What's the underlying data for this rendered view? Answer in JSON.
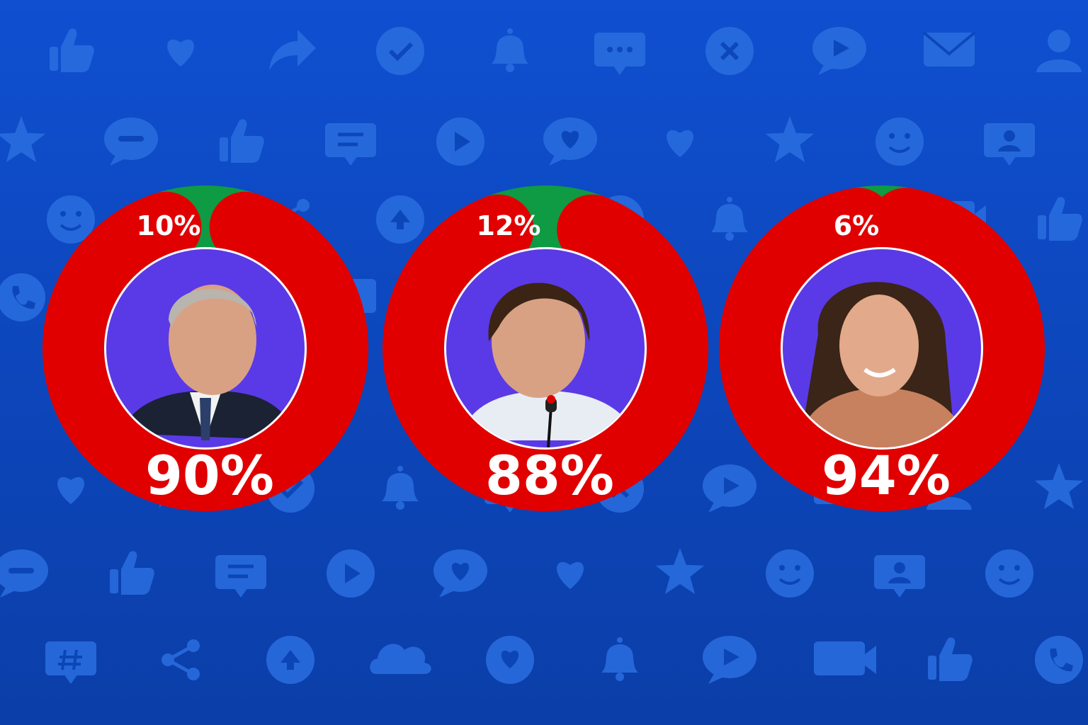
{
  "colors": {
    "background_top": "#0f4fd0",
    "background_bottom": "#0b3ea8",
    "pattern_icon": "#2a6ee0",
    "negative_red": "#e00000",
    "positive_green": "#0f9a44",
    "portrait_bg": "#5a3ae6",
    "label_text": "#ffffff"
  },
  "background_icons": [
    "thumbs-up-icon",
    "heart-icon",
    "share-arrow-icon",
    "check-circle-icon",
    "bell-icon",
    "chat-dots-icon",
    "close-circle-icon",
    "play-bubble-icon",
    "mail-icon",
    "user-icon",
    "star-icon",
    "comment-icon",
    "thumbs-up-icon",
    "message-lines-icon",
    "play-circle-icon",
    "heart-bubble-icon",
    "heart-icon",
    "star-icon",
    "smile-icon",
    "contact-card-icon",
    "smile-icon",
    "hashtag-bubble-icon",
    "share-nodes-icon",
    "upload-circle-icon",
    "cloud-icon",
    "heart-circle-icon",
    "bell-icon",
    "play-bubble-icon",
    "video-camera-icon",
    "thumbs-up-icon",
    "phone-icon",
    "comment-icon",
    "heart-icon",
    "contact-card-icon",
    "star-icon",
    "plus-circle-icon",
    "user-icon",
    "chat-icon",
    "heart-icon"
  ],
  "chart_data": [
    {
      "type": "pie",
      "variant": "donut",
      "labels": [
        "10%",
        "90%"
      ],
      "slices": [
        {
          "value": 10,
          "color": "#0f9a44"
        },
        {
          "value": 90,
          "color": "#e00000"
        }
      ],
      "portrait": "older-man-in-suit"
    },
    {
      "type": "pie",
      "variant": "donut",
      "labels": [
        "12%",
        "88%"
      ],
      "slices": [
        {
          "value": 12,
          "color": "#0f9a44"
        },
        {
          "value": 88,
          "color": "#e00000"
        }
      ],
      "portrait": "man-speaking-at-microphone"
    },
    {
      "type": "pie",
      "variant": "donut",
      "labels": [
        "6%",
        "94%"
      ],
      "slices": [
        {
          "value": 6,
          "color": "#0f9a44"
        },
        {
          "value": 94,
          "color": "#e00000"
        }
      ],
      "portrait": "smiling-woman"
    }
  ]
}
